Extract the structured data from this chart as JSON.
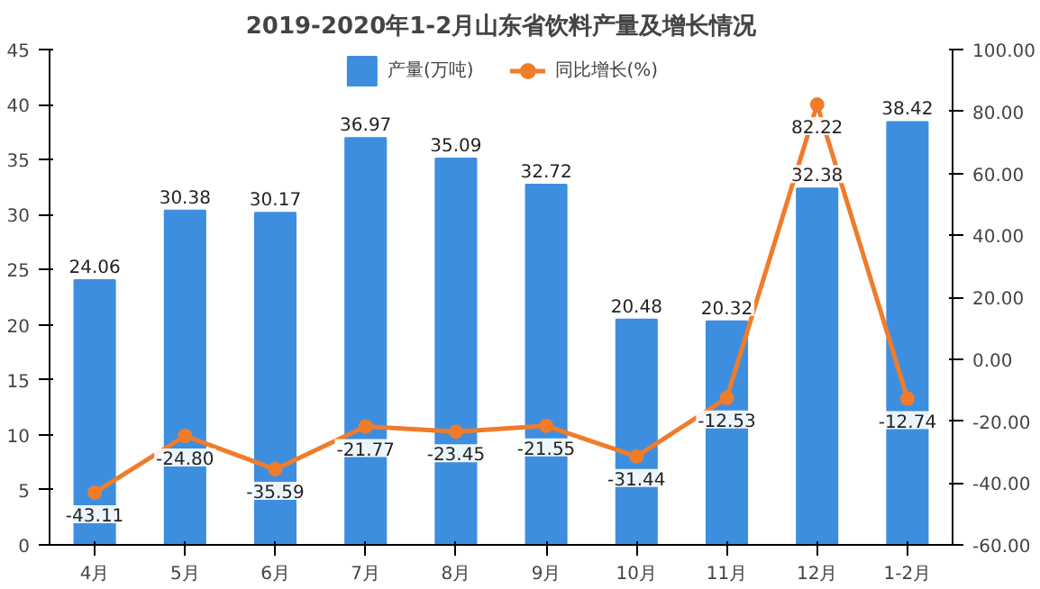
{
  "chart_data": {
    "type": "bar",
    "title": "2019-2020年1-2月山东省饮料产量及增长情况",
    "categories": [
      "4月",
      "5月",
      "6月",
      "7月",
      "8月",
      "9月",
      "10月",
      "11月",
      "12月",
      "1-2月"
    ],
    "series": [
      {
        "name": "产量(万吨)",
        "color": "#3e8ee0",
        "values": [
          24.06,
          30.38,
          30.17,
          36.97,
          35.09,
          32.72,
          20.48,
          20.32,
          32.38,
          38.42
        ],
        "value_labels": [
          "24.06",
          "30.38",
          "30.17",
          "36.97",
          "35.09",
          "32.72",
          "20.48",
          "20.32",
          "32.38",
          "38.42"
        ]
      },
      {
        "name": "同比增长(%)",
        "type": "line",
        "axis": "y2",
        "color": "#f07c2a",
        "marker": "circle",
        "values": [
          -43.11,
          -24.8,
          -35.59,
          -21.77,
          -23.45,
          -21.55,
          -31.44,
          -12.53,
          82.22,
          -12.74
        ],
        "value_labels": [
          "-43.11",
          "-24.80",
          "-35.59",
          "-21.77",
          "-23.45",
          "-21.55",
          "-31.44",
          "-12.53",
          "82.22",
          "-12.74"
        ]
      }
    ],
    "ylim": [
      0,
      45
    ],
    "yticks": [
      0,
      5,
      10,
      15,
      20,
      25,
      30,
      35,
      40,
      45
    ],
    "y2lim": [
      -60,
      100
    ],
    "y2ticks": [
      {
        "value": -60,
        "label": "-60.00"
      },
      {
        "value": -40,
        "label": "-40.00"
      },
      {
        "value": -20,
        "label": "-20.00"
      },
      {
        "value": 0,
        "label": "0.00"
      },
      {
        "value": 20,
        "label": "20.00"
      },
      {
        "value": 40,
        "label": "40.00"
      },
      {
        "value": 60,
        "label": "60.00"
      },
      {
        "value": 80,
        "label": "80.00"
      },
      {
        "value": 100,
        "label": "100.00"
      }
    ],
    "grid": false,
    "legend": "top"
  }
}
